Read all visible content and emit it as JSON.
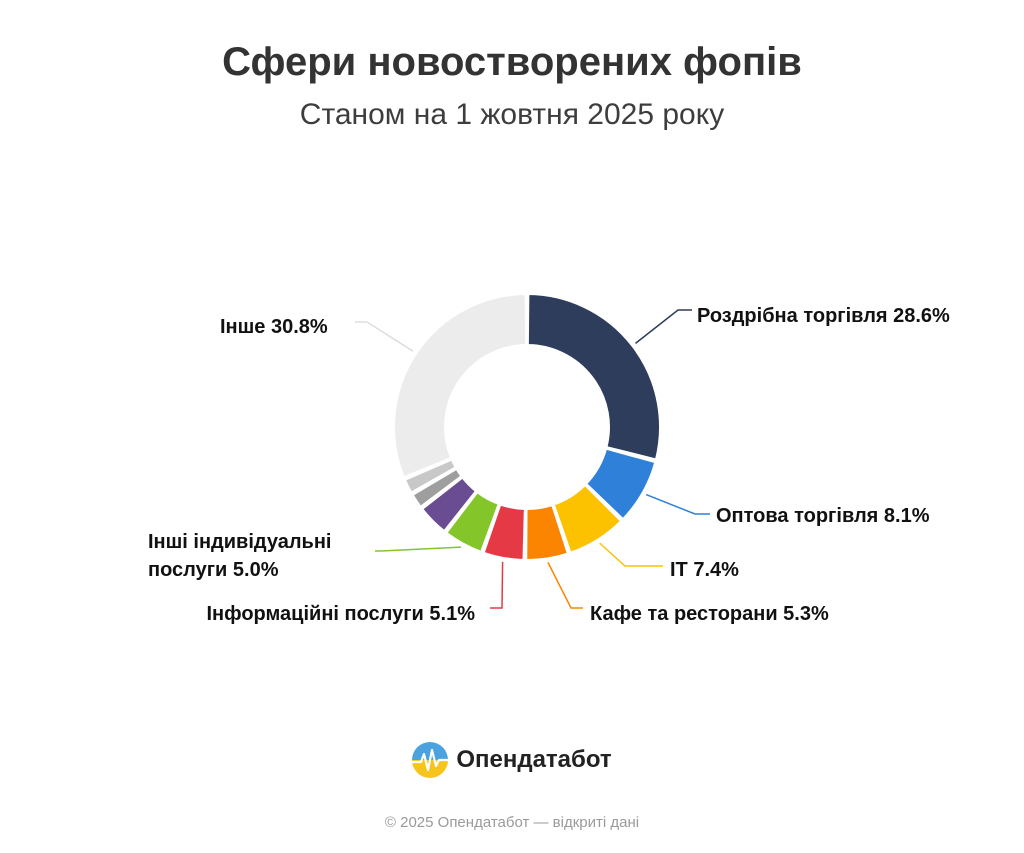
{
  "header": {
    "title": "Сфери новостворених фопів",
    "subtitle": "Станом на 1 жовтня 2025 року"
  },
  "chart_data": {
    "type": "pie",
    "title": "Сфери новостворених фопів",
    "subtitle": "Станом на 1 жовтня 2025 року",
    "donut": true,
    "slices": [
      {
        "name": "Роздрібна торгівля",
        "value": 28.6,
        "label": "Роздрібна торгівля 28.6%",
        "color": "#2e3d5c"
      },
      {
        "name": "Оптова торгівля",
        "value": 8.1,
        "label": "Оптова торгівля 8.1%",
        "color": "#2f80d8"
      },
      {
        "name": "ІТ",
        "value": 7.4,
        "label": "ІТ 7.4%",
        "color": "#fcc200"
      },
      {
        "name": "Кафе та ресторани",
        "value": 5.3,
        "label": "Кафе та ресторани 5.3%",
        "color": "#fb8500"
      },
      {
        "name": "Інформаційні послуги",
        "value": 5.1,
        "label": "Інформаційні послуги 5.1%",
        "color": "#e63946"
      },
      {
        "name": "Інші індивідуальні послуги",
        "value": 5.0,
        "label_lines": [
          "Інші індивідуальні",
          "послуги 5.0%"
        ],
        "color": "#84c52a"
      },
      {
        "name": "",
        "value": 4.0,
        "color": "#6a4c93"
      },
      {
        "name": "",
        "value": 2.0,
        "color": "#9e9e9e"
      },
      {
        "name": "",
        "value": 2.0,
        "color": "#c8c8c8"
      },
      {
        "name": "Інше",
        "value": 30.8,
        "label": "Інше 30.8%",
        "color": "#ececec"
      }
    ]
  },
  "brand": {
    "name": "Опендатабот",
    "logo_icon": "opendatabot-logo-icon"
  },
  "footer": {
    "text": "© 2025 Опендатабот — відкриті дані"
  }
}
